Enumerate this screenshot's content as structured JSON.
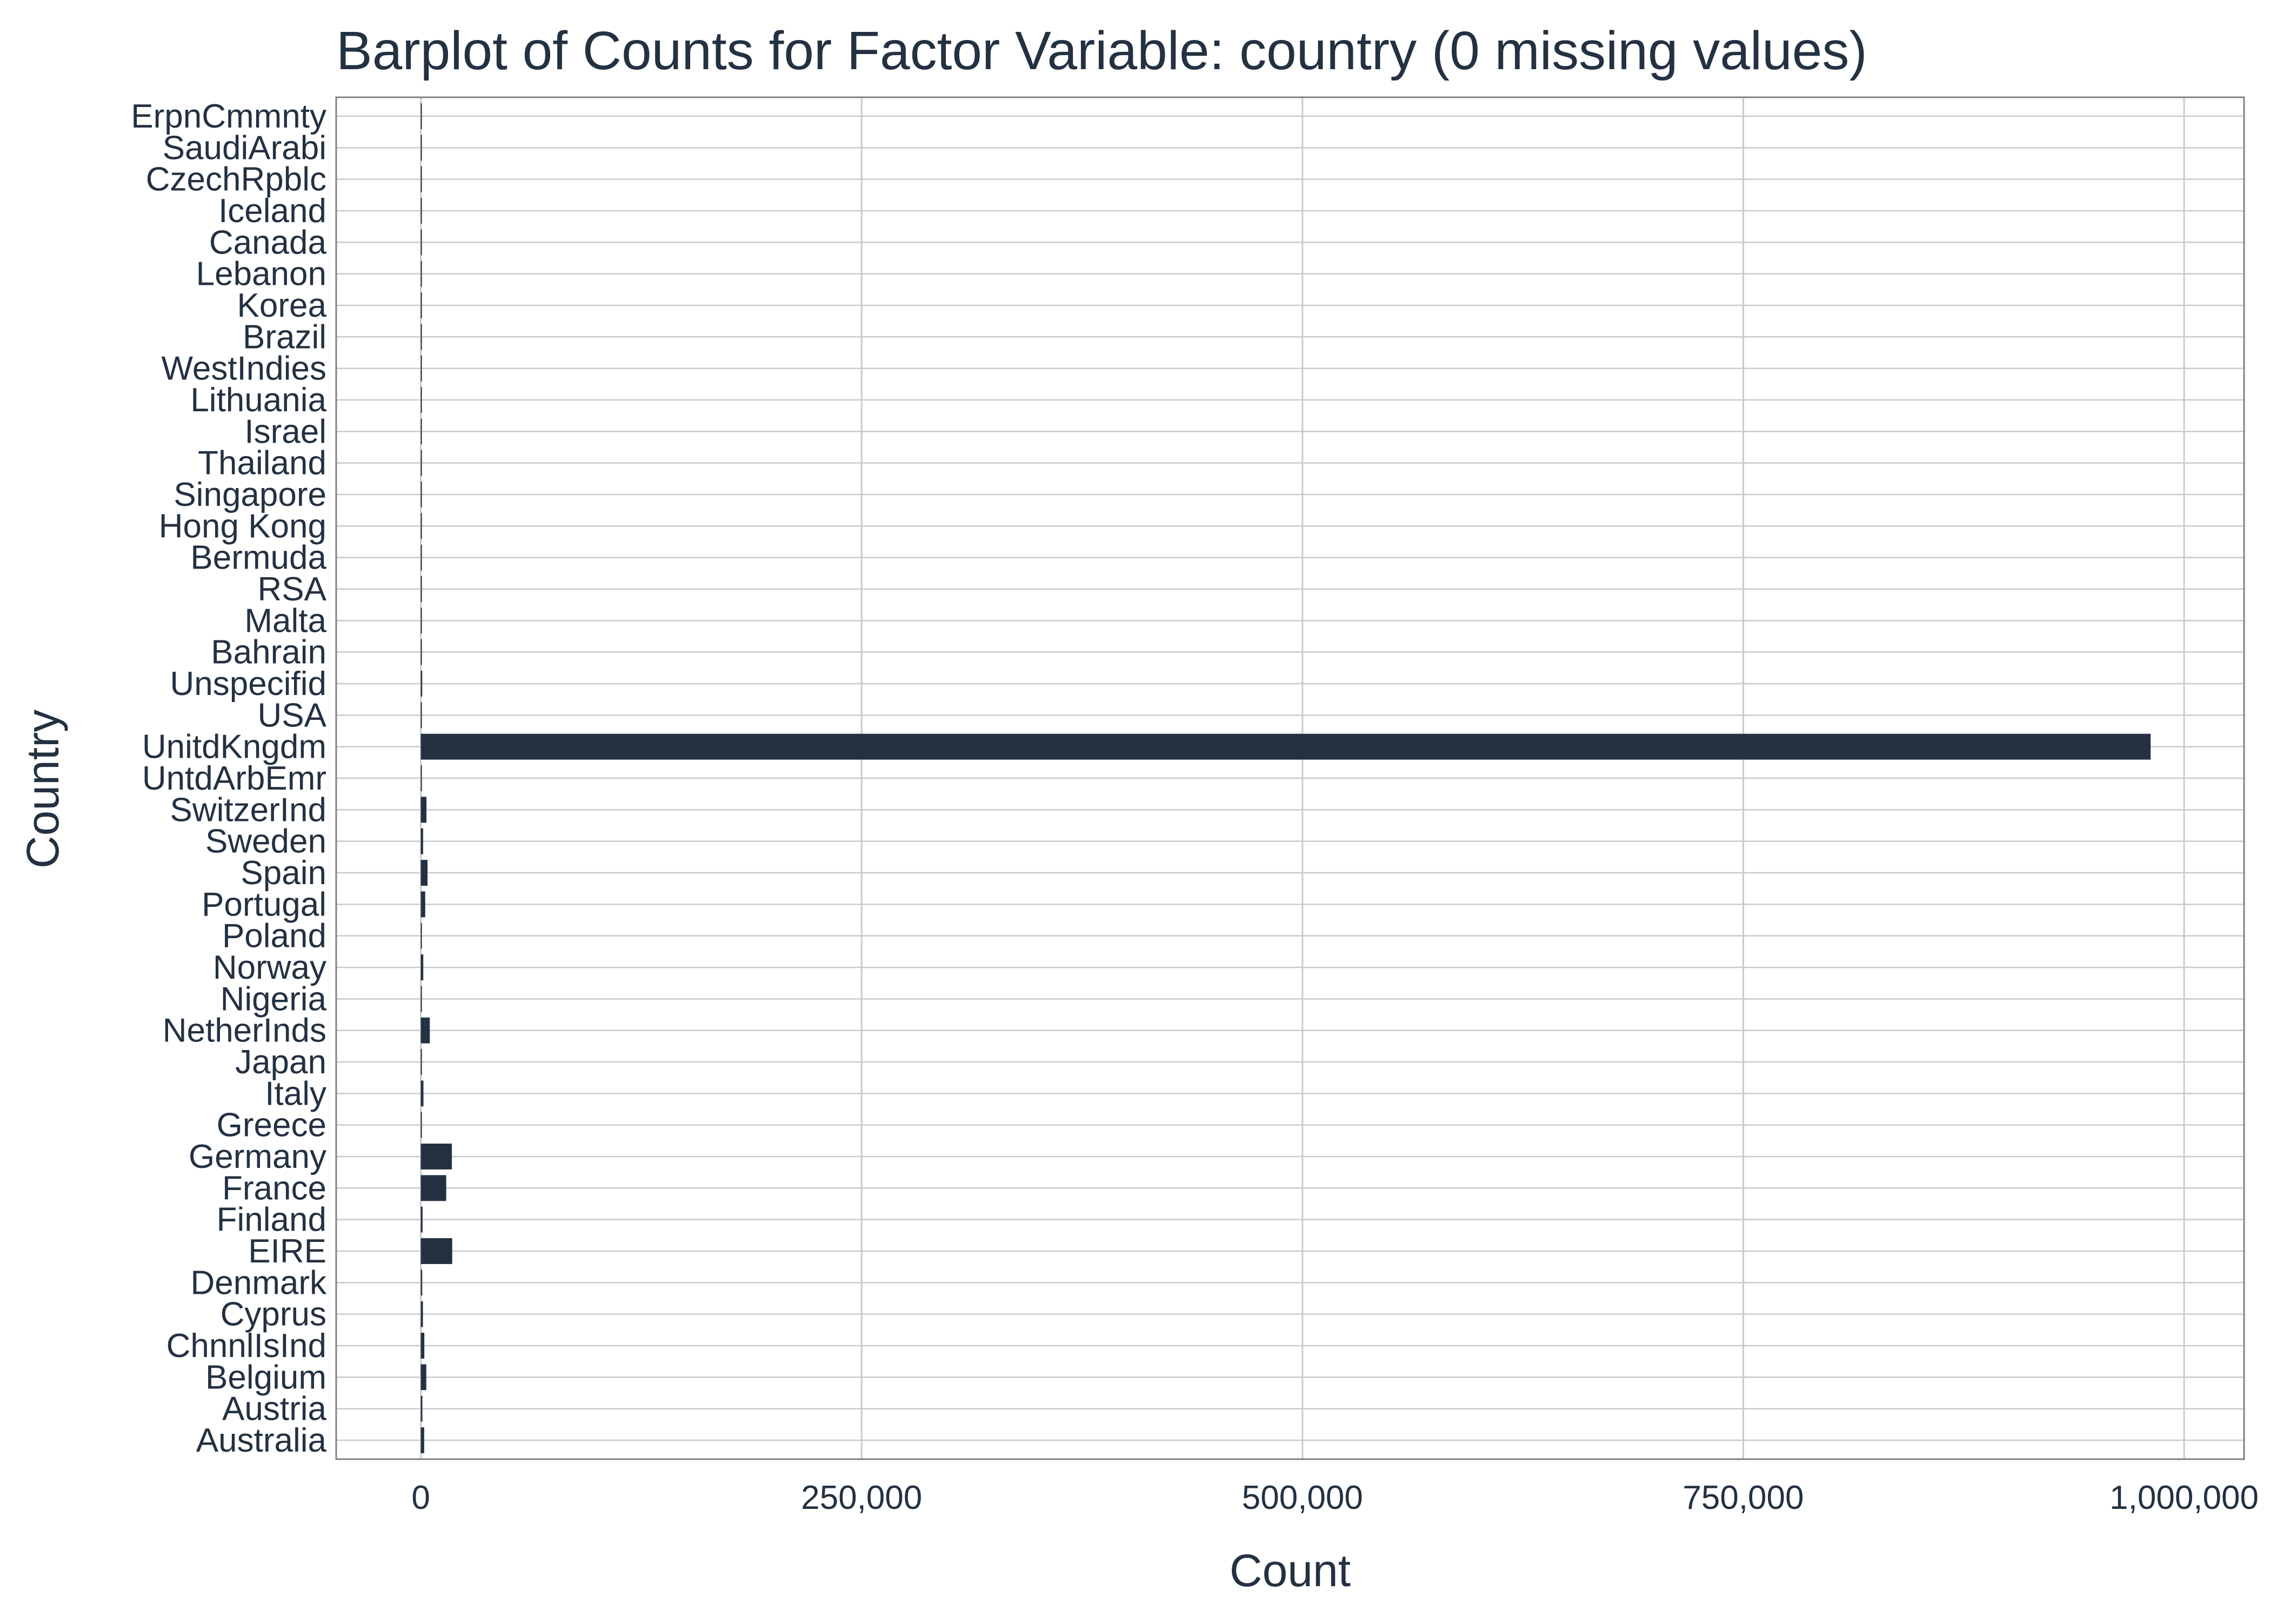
{
  "chart_data": {
    "type": "bar",
    "orientation": "horizontal",
    "title": "Barplot of Counts for Factor Variable: country (0 missing values)",
    "xlabel": "Count",
    "ylabel": "Country",
    "xlim": [
      -48000,
      1034000
    ],
    "x_ticks": [
      0,
      250000,
      500000,
      750000,
      1000000
    ],
    "x_tick_labels": [
      "0",
      "250,000",
      "500,000",
      "750,000",
      "1,000,000"
    ],
    "grid": true,
    "legend": "none",
    "colors": {
      "bar": "#233142",
      "grid": "#C9CACD",
      "frame": "#7F8287",
      "text": "#233142"
    },
    "categories": [
      "Australia",
      "Austria",
      "Belgium",
      "ChnnlIsInd",
      "Cyprus",
      "Denmark",
      "EIRE",
      "Finland",
      "France",
      "Germany",
      "Greece",
      "Italy",
      "Japan",
      "NetherInds",
      "Nigeria",
      "Norway",
      "Poland",
      "Portugal",
      "Spain",
      "Sweden",
      "SwitzerInd",
      "UntdArbEmr",
      "UnitdKngdm",
      "USA",
      "Unspecifid",
      "Bahrain",
      "Malta",
      "RSA",
      "Bermuda",
      "Hong Kong",
      "Singapore",
      "Thailand",
      "Israel",
      "Lithuania",
      "WestIndies",
      "Brazil",
      "Korea",
      "Lebanon",
      "Canada",
      "Iceland",
      "CzechRpblc",
      "SaudiArabi",
      "ErpnCmmnty"
    ],
    "values": [
      1900,
      900,
      3100,
      2000,
      1200,
      800,
      17800,
      1000,
      14400,
      17600,
      500,
      1500,
      500,
      5100,
      30,
      1400,
      500,
      2500,
      3800,
      1300,
      3200,
      100,
      981000,
      500,
      800,
      100,
      300,
      100,
      30,
      400,
      300,
      80,
      300,
      40,
      50,
      90,
      60,
      60,
      200,
      300,
      40,
      20,
      60
    ]
  }
}
